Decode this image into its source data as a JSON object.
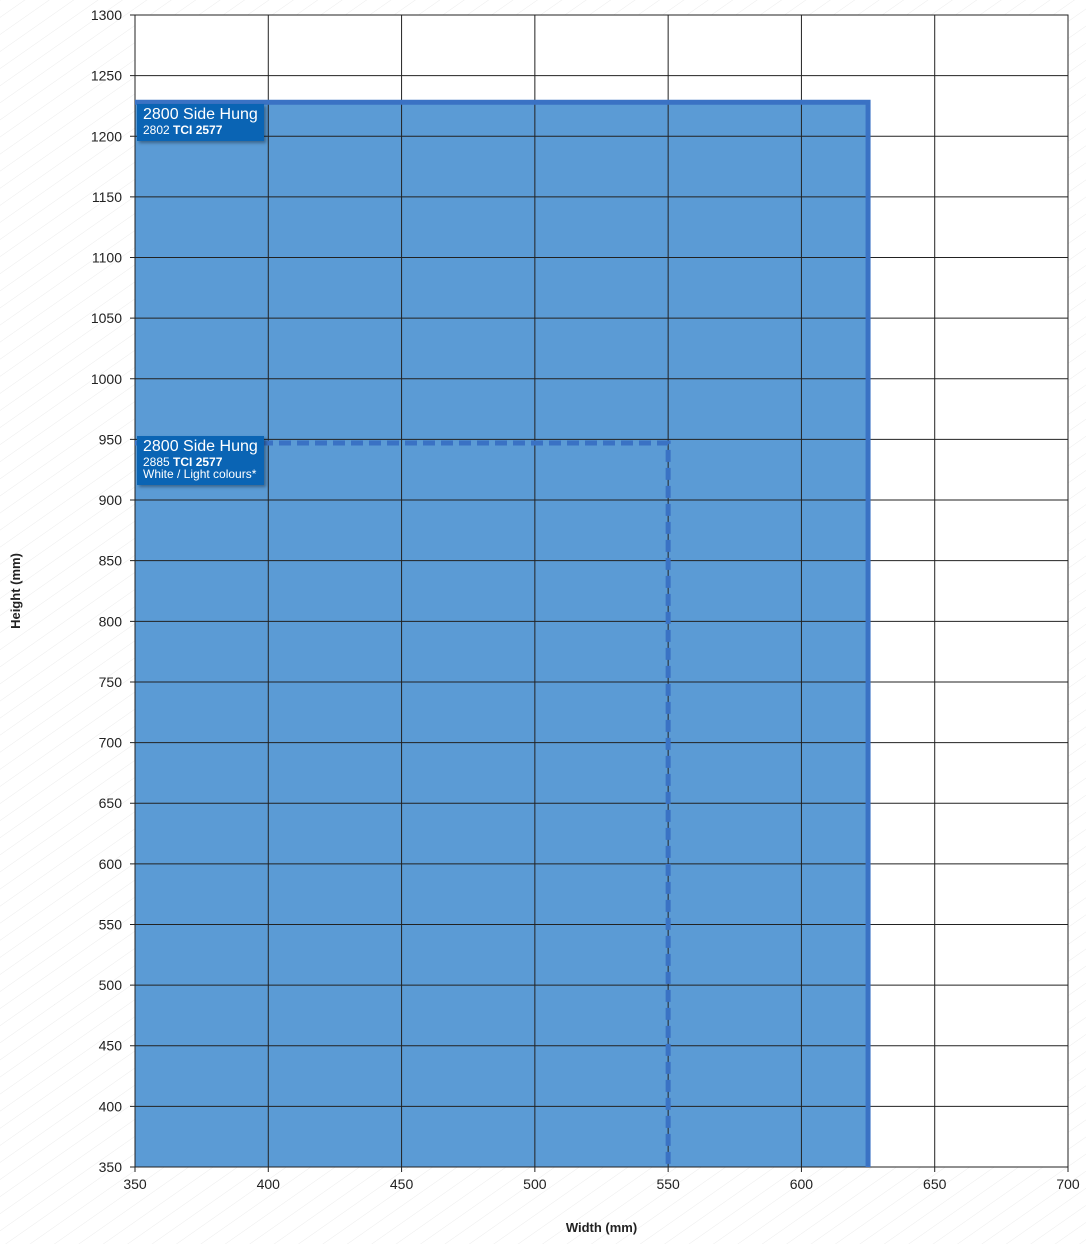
{
  "chart_data": {
    "type": "area",
    "xlabel": "Width (mm)",
    "ylabel": "Height (mm)",
    "xlim": [
      350,
      700
    ],
    "ylim": [
      350,
      1300
    ],
    "x_ticks": [
      350,
      400,
      450,
      500,
      550,
      600,
      650,
      700
    ],
    "y_ticks": [
      350,
      400,
      450,
      500,
      550,
      600,
      650,
      700,
      750,
      800,
      850,
      900,
      950,
      1000,
      1050,
      1100,
      1150,
      1200,
      1250,
      1300
    ],
    "grid": true,
    "fill_color": "#5b9bd5",
    "line_color": "#3a72c4",
    "series": [
      {
        "name": "2800 Side Hung 2802 TCI 2577",
        "x_range": [
          350,
          625
        ],
        "y_range": [
          350,
          1228
        ],
        "line_style": "solid"
      },
      {
        "name": "2800 Side Hung 2885 TCI 2577 White / Light colours*",
        "x_range": [
          350,
          550
        ],
        "y_range": [
          350,
          947
        ],
        "line_style": "dashed"
      }
    ],
    "annotations": [
      {
        "title": "2800 Side Hung",
        "code": "2802",
        "model": "TCI 2577",
        "note": ""
      },
      {
        "title": "2800 Side Hung",
        "code": "2885",
        "model": "TCI 2577",
        "note": "White / Light colours*"
      }
    ]
  }
}
